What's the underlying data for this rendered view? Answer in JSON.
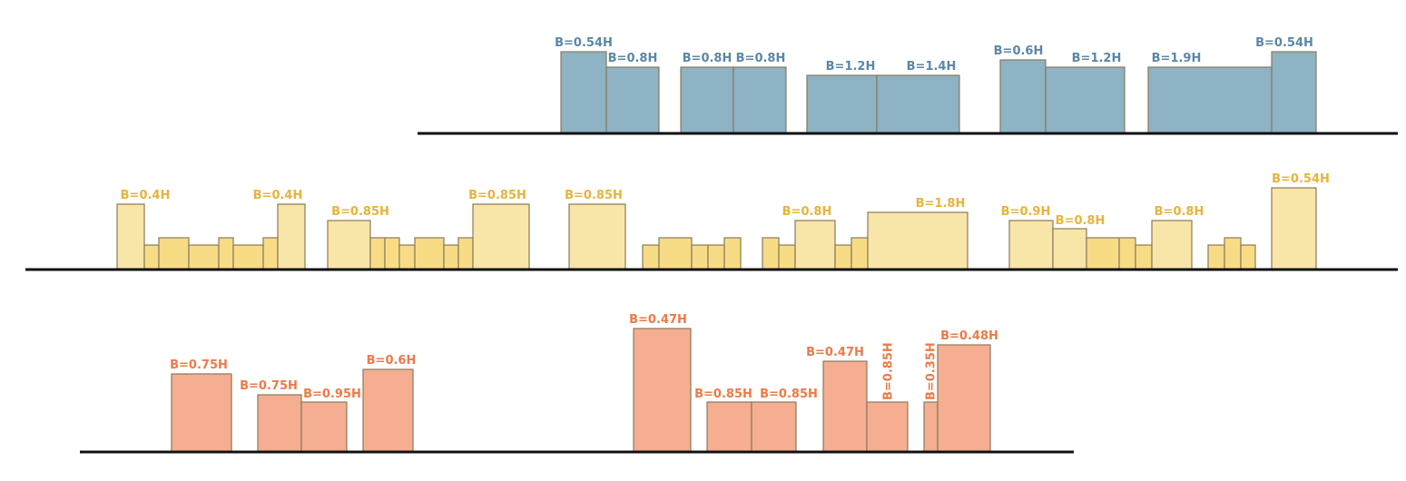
{
  "colors": {
    "ground": "#111111",
    "outline": "#8a7a5a",
    "blue_fill": "#8db3c4",
    "blue_label": "#5b87a6",
    "yellow_fill": "#f8e5a8",
    "yellow_low_fill": "#f7dc85",
    "yellow_label": "#e8b33a",
    "orange_fill": "#f5ae91",
    "orange_label": "#ec7a48"
  },
  "rows": [
    {
      "name": "blue",
      "labels": [
        "B=0.54H",
        "B=0.8H",
        "B=0.8H",
        "B=0.8H",
        "B=1.2H",
        "B=1.4H",
        "B=0.6H",
        "B=1.2H",
        "B=1.9H",
        "B=0.54H"
      ]
    },
    {
      "name": "yellow",
      "labels": [
        "B=0.4H",
        "B=0.4H",
        "B=0.85H",
        "B=0.85H",
        "B=0.85H",
        "B=0.8H",
        "B=1.8H",
        "B=0.9H",
        "B=0.8H",
        "B=0.8H",
        "B=0.54H"
      ]
    },
    {
      "name": "orange",
      "labels": [
        "B=0.75H",
        "B=0.75H",
        "B=0.95H",
        "B=0.6H",
        "B=0.47H",
        "B=0.85H",
        "B=0.85H",
        "B=0.47H",
        "B=0.85H",
        "B=0.35H",
        "B=0.48H"
      ]
    }
  ]
}
